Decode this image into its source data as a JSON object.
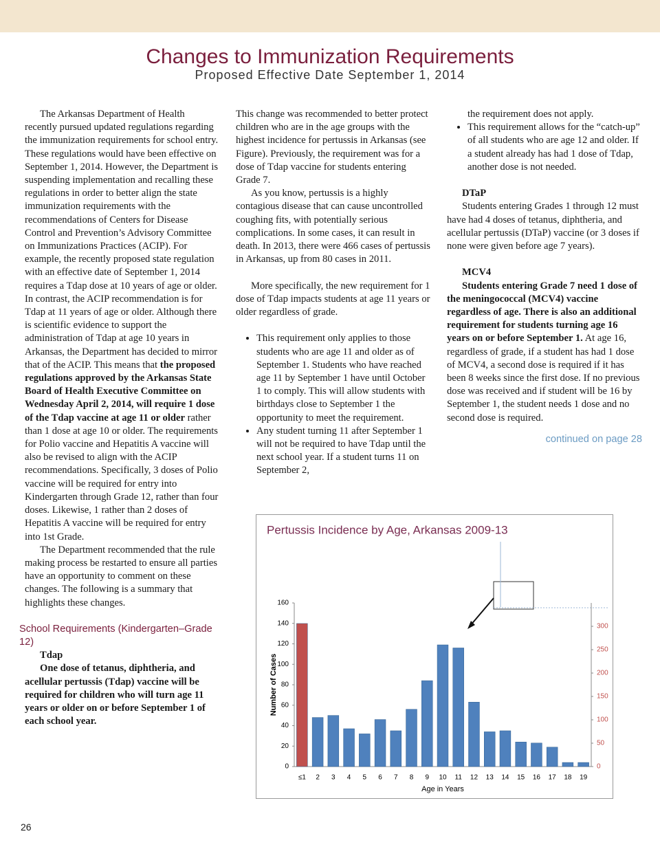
{
  "header": {
    "title": "Changes to Immunization Requirements",
    "subtitle": "Proposed Effective Date September 1, 2014"
  },
  "column_1": {
    "paragraph_1": [
      "The Arkansas Department of Health recently pursued updated regulations regarding the immunization requirements for school entry. These regulations would have been effective on September 1, 2014. However, the Department is suspending implementation and recalling these regulations in order to better align the state immunization requirements with the recommendations of Centers for Disease Control and Prevention’s Advisory Committee on Immunizations Practices (ACIP). For example, the recently proposed state regulation with an effective date of September 1, 2014 requires a Tdap dose at 10 years of age or older. In contrast, the ACIP recommendation is for Tdap at 11 years of age or older. Although there is scientific evidence to support the administration of Tdap at age 10 years in Arkansas, the Department has decided to mirror that of the ACIP. This means that",
      "the proposed regulations approved by the Arkansas State Board of Health Executive Committee on Wednesday April 2, 2014, will require 1 dose of the Tdap vaccine at age 11 or older",
      "rather than 1 dose at age 10 or older. The requirements for Polio vaccine and Hepatitis A vaccine will also be revised to align with the ACIP recommendations. Specifically, 3 doses of Polio vaccine will be required for entry into Kindergarten through Grade 12, rather than four doses. Likewise, 1 rather than 2 doses of Hepatitis A vaccine will be required for entry into 1st Grade."
    ],
    "paragraph_2": "The Department recommended that the rule making process be restarted to ensure all parties have an opportunity to comment on these changes. The following is a summary that highlights these changes.",
    "heading": "School Requirements (Kindergarten–Grade 12)",
    "subheading": "Tdap",
    "paragraph_3": "One dose of tetanus, diphtheria, and acellular pertussis (Tdap) vaccine will be required for children who will turn age 11 years or older on or before September 1 of each school year."
  },
  "column_2": {
    "paragraph_1": "This change was recommended to better protect children who are in the age groups with the highest incidence for pertussis in Arkansas (see Figure). Previously, the requirement was for a dose of Tdap vaccine for students entering Grade 7.",
    "paragraph_2": "As you know, pertussis is a highly contagious disease that can cause uncontrolled coughing fits, with potentially serious complications. In some cases, it can result in death. In 2013, there were 466 cases of pertussis in Arkansas, up from 80 cases in 2011.",
    "paragraph_3": "More specifically, the new requirement for 1 dose of Tdap impacts students at age 11 years or older regardless of grade.",
    "bullets": [
      "This requirement only applies to those students who are age 11 and older as of September 1. Students who have reached age 11 by September 1 have until October 1 to comply. This will allow students with birthdays close to September 1 the opportunity to meet the requirement.",
      "Any student turning 11 after September 1 will not be required to have Tdap until the next school year. If a student turns 11 on September 2,"
    ]
  },
  "column_3": {
    "bullet_continuation": "the requirement does not apply.",
    "bullets": [
      "This requirement allows for the “catch-up” of all students who are age 12 and older. If a student already has had 1 dose of Tdap, another dose is not needed."
    ],
    "dtap_heading": "DTaP",
    "dtap_text": "Students entering Grades 1 through 12 must have had 4 doses of tetanus, diphtheria, and acellular pertussis (DTaP) vaccine (or 3 doses if none were given before age 7 years).",
    "mcv4_heading": "MCV4",
    "mcv4_text": [
      "Students entering Grade 7 need 1 dose of the meningococcal (MCV4) vaccine regardless of age. There is also an additional requirement for students turning age 16 years on or before September 1.",
      "At age 16, regardless of grade, if a student has had 1 dose of MCV4, a second dose is required if it has been 8 weeks since the first dose. If no previous dose was received and if student will be 16 by September 1, the student needs 1 dose and no second dose is required."
    ],
    "continued": "continued on page 28"
  },
  "page_number": "26",
  "chart_data": {
    "type": "bar",
    "title": "Pertussis Incidence by Age, Arkansas 2009-13",
    "x_label": "Age in Years",
    "y_label": "Number of Cases",
    "categories": [
      "≤1",
      "2",
      "3",
      "4",
      "5",
      "6",
      "7",
      "8",
      "9",
      "10",
      "11",
      "12",
      "13",
      "14",
      "15",
      "16",
      "17",
      "18",
      "19"
    ],
    "series": [
      {
        "color": "#4f81bd",
        "values": [
          null,
          48,
          50,
          37,
          32,
          46,
          35,
          56,
          84,
          119,
          116,
          63,
          34,
          35,
          24,
          23,
          19,
          4,
          4
        ]
      },
      {
        "color": "#c0504d",
        "axis": "y2",
        "values": [
          306,
          null,
          null,
          null,
          null,
          null,
          null,
          null,
          null,
          null,
          null,
          null,
          null,
          null,
          null,
          null,
          null,
          null,
          null
        ]
      }
    ],
    "ylim": [
      0,
      160
    ],
    "yticks": [
      0,
      20,
      40,
      60,
      80,
      100,
      120,
      140,
      160
    ],
    "y2lim": [
      0,
      350
    ],
    "y2ticks": [
      0,
      50,
      100,
      150,
      200,
      250,
      300
    ],
    "y2_color": "#c0504d"
  }
}
